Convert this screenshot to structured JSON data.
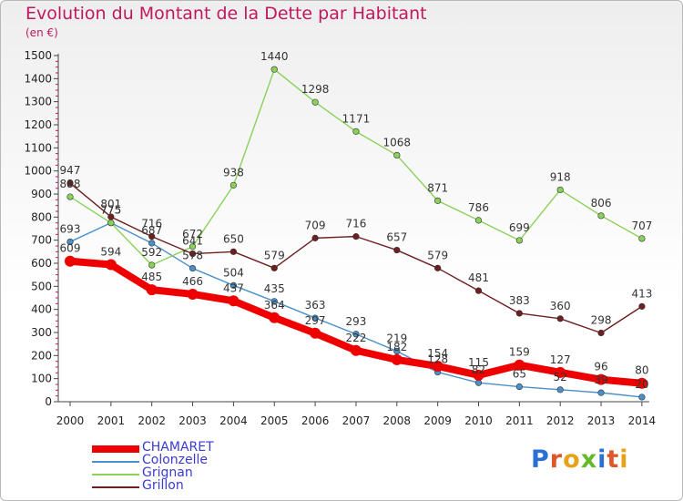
{
  "header": {
    "title": "Evolution du Montant de la Dette par Habitant",
    "unit": "(en €)"
  },
  "logo": {
    "text": "Proxiti"
  },
  "chart_data": {
    "type": "line",
    "title": "Evolution du Montant de la Dette par Habitant",
    "ylabel": "(en €)",
    "xlabel": "",
    "ylim": [
      0,
      1500
    ],
    "yticks": [
      0,
      100,
      200,
      300,
      400,
      500,
      600,
      700,
      800,
      900,
      1000,
      1100,
      1200,
      1300,
      1400,
      1500
    ],
    "grid": false,
    "legend_position": "bottom-left",
    "x": [
      "2000",
      "2001",
      "2002",
      "2003",
      "2004",
      "2005",
      "2006",
      "2007",
      "2008",
      "2009",
      "2010",
      "2011",
      "2012",
      "2013",
      "2014"
    ],
    "series": [
      {
        "name": "CHAMARET",
        "color": "#ee0000",
        "emphasis": true,
        "values": [
          609,
          594,
          485,
          466,
          437,
          364,
          297,
          222,
          182,
          154,
          115,
          159,
          127,
          96,
          80
        ]
      },
      {
        "name": "Colonzelle",
        "color": "#4a90c8",
        "values": [
          693,
          775,
          687,
          578,
          504,
          435,
          363,
          293,
          219,
          128,
          82,
          65,
          52,
          39,
          20
        ]
      },
      {
        "name": "Grignan",
        "color": "#8ad15a",
        "values": [
          888,
          775,
          592,
          672,
          938,
          1440,
          1298,
          1171,
          1068,
          871,
          786,
          699,
          918,
          806,
          707
        ]
      },
      {
        "name": "Grillon",
        "color": "#6e1f1f",
        "values": [
          947,
          801,
          716,
          641,
          650,
          579,
          709,
          716,
          657,
          579,
          481,
          383,
          360,
          298,
          413
        ]
      }
    ]
  }
}
